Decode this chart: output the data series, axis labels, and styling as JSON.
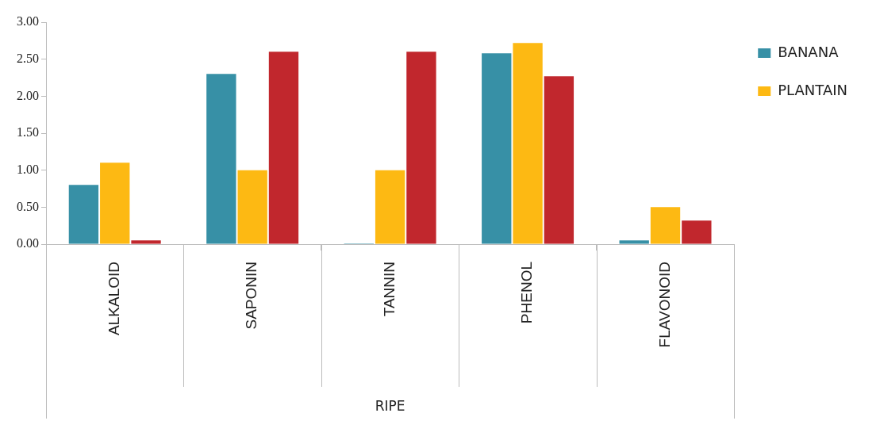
{
  "chart_data": {
    "type": "bar",
    "xlabel": "RIPE",
    "categories": [
      "ALKALOID",
      "SAPONIN",
      "TANNIN",
      "PHENOL",
      "FLAVONOID"
    ],
    "series": [
      {
        "name": "BANANA",
        "color": "#3790a6",
        "values": [
          0.8,
          2.3,
          0.01,
          2.58,
          0.05
        ]
      },
      {
        "name": "PLANTAIN",
        "color": "#fdb913",
        "values": [
          1.1,
          1.0,
          1.0,
          2.72,
          0.5
        ]
      },
      {
        "color": "#c1272d",
        "values": [
          0.05,
          2.6,
          2.6,
          2.27,
          0.32
        ]
      }
    ],
    "ylim": [
      0,
      3
    ],
    "yticks": [
      {
        "value": 0,
        "label": "0.00"
      },
      {
        "value": 0.5,
        "label": "0.50"
      },
      {
        "value": 1,
        "label": "1.00"
      },
      {
        "value": 1.5,
        "label": "1.50"
      },
      {
        "value": 2,
        "label": "2.00"
      },
      {
        "value": 2.5,
        "label": "2.50"
      },
      {
        "value": 3,
        "label": "3.00"
      }
    ],
    "grid": false,
    "legend": "right"
  }
}
